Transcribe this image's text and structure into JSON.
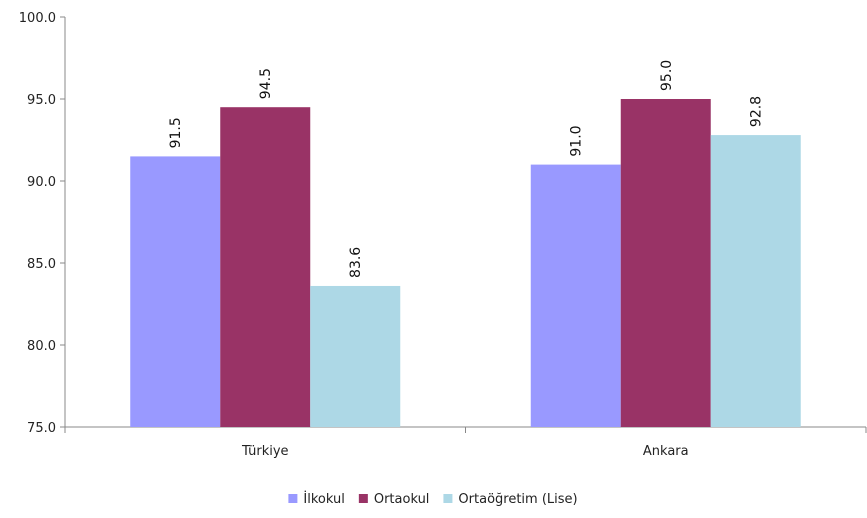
{
  "chart_data": {
    "type": "bar",
    "categories": [
      "Türkiye",
      "Ankara"
    ],
    "series": [
      {
        "name": "İlkokul",
        "values": [
          91.5,
          91.0
        ],
        "color": "#9999ff"
      },
      {
        "name": "Ortaokul",
        "values": [
          94.5,
          95.0
        ],
        "color": "#993366"
      },
      {
        "name": "Ortaöğretim (Lise)",
        "values": [
          83.6,
          92.8
        ],
        "color": "#add8e6"
      }
    ],
    "title": "",
    "xlabel": "",
    "ylabel": "",
    "ylim": [
      75.0,
      100.0
    ],
    "yticks": [
      "75.0",
      "80.0",
      "85.0",
      "90.0",
      "95.0",
      "100.0"
    ],
    "grid": false,
    "legend": "bottom"
  }
}
